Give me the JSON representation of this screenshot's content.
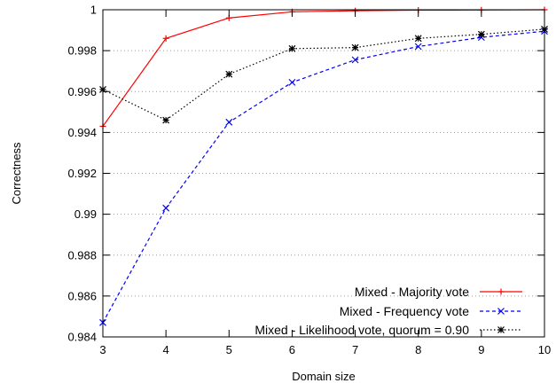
{
  "chart_data": {
    "type": "line",
    "xlabel": "Domain size",
    "ylabel": "Correctness",
    "xlim": [
      3,
      10
    ],
    "ylim": [
      0.984,
      1.0
    ],
    "x": [
      3,
      4,
      5,
      6,
      7,
      8,
      9,
      10
    ],
    "xticks": [
      "3",
      "4",
      "5",
      "6",
      "7",
      "8",
      "9",
      "10"
    ],
    "yticks": [
      "0.984",
      "0.986",
      "0.988",
      "0.99",
      "0.992",
      "0.994",
      "0.996",
      "0.998",
      "1"
    ],
    "ytick_values": [
      0.984,
      0.986,
      0.988,
      0.99,
      0.992,
      0.994,
      0.996,
      0.998,
      1.0
    ],
    "grid": "horizontal dotted",
    "legend_position": "bottom-right",
    "series": [
      {
        "name": "Mixed - Majority vote",
        "values": [
          0.9943,
          0.9986,
          0.9996,
          0.9999,
          0.99995,
          0.99998,
          0.99999,
          1.0
        ],
        "color": "#ff0000",
        "marker": "plus",
        "line_style": "solid"
      },
      {
        "name": "Mixed - Frequency vote",
        "values": [
          0.9847,
          0.9903,
          0.9945,
          0.99645,
          0.99755,
          0.9982,
          0.99865,
          0.99895
        ],
        "color": "#0000ff",
        "marker": "cross",
        "line_style": "dashed"
      },
      {
        "name": "Mixed - Likelihood vote, quorum = 0.90",
        "values": [
          0.9961,
          0.9946,
          0.99685,
          0.9981,
          0.99815,
          0.9986,
          0.9988,
          0.99905
        ],
        "color": "#000000",
        "marker": "star",
        "line_style": "dotted"
      }
    ]
  }
}
